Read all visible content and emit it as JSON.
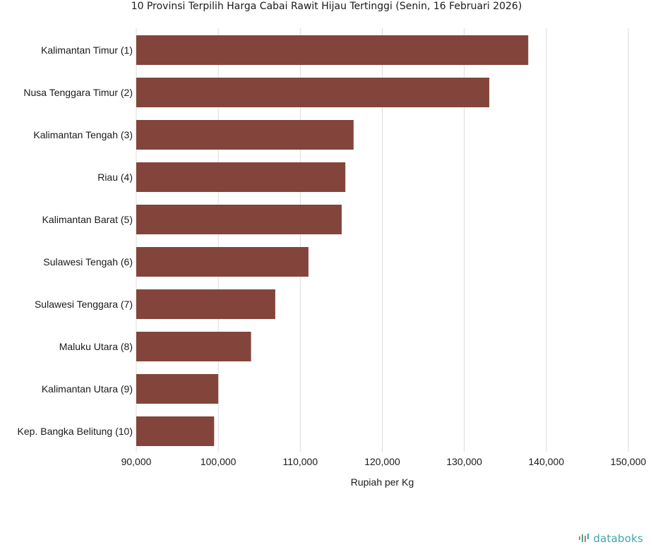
{
  "colors": {
    "bar": "#83453B",
    "grid": "#dcdcdc",
    "brand": "#3fa7a0",
    "brand_accent": "#e8703a"
  },
  "brand": {
    "name": "databoks",
    "icon": "databoks-logo-icon"
  },
  "chart_data": {
    "type": "bar",
    "orientation": "horizontal",
    "title": "10 Provinsi Terpilih Harga Cabai Rawit Hijau Tertinggi (Senin, 16 Februari 2026)",
    "xlabel": "Rupiah per Kg",
    "ylabel": "",
    "xlim": [
      90000,
      150000
    ],
    "xticks": [
      90000,
      100000,
      110000,
      120000,
      130000,
      140000,
      150000
    ],
    "xtick_labels": [
      "90,000",
      "100,000",
      "110,000",
      "120,000",
      "130,000",
      "140,000",
      "150,000"
    ],
    "grid": true,
    "categories": [
      "Kalimantan Timur (1)",
      "Nusa Tenggara Timur (2)",
      "Kalimantan Tengah (3)",
      "Riau (4)",
      "Kalimantan Barat (5)",
      "Sulawesi Tengah (6)",
      "Sulawesi Tenggara (7)",
      "Maluku Utara (8)",
      "Kalimantan Utara (9)",
      "Kep. Bangka Belitung (10)"
    ],
    "values": [
      137800,
      133050,
      116500,
      115500,
      115050,
      111000,
      106950,
      104000,
      100000,
      99500
    ]
  }
}
